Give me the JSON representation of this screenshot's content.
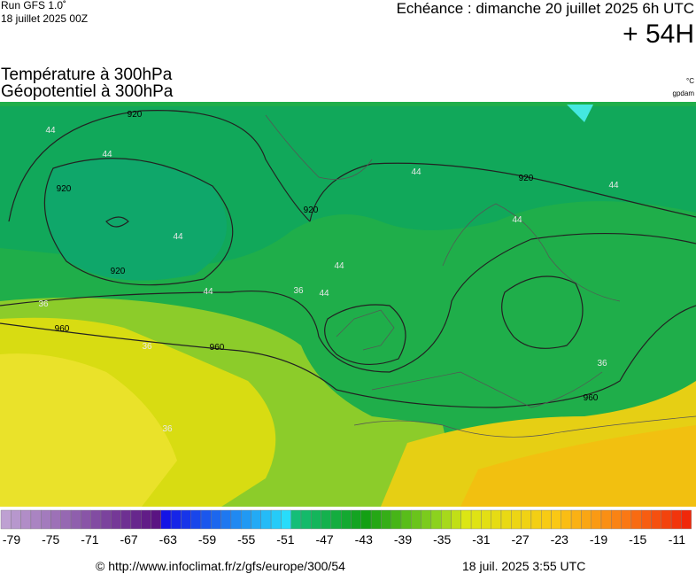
{
  "header": {
    "run": "Run GFS 1.0˚",
    "date": "18 juillet 2025 00Z",
    "echeance": "Echéance : dimanche 20 juillet 2025 6h UTC",
    "lead": "+ 54H"
  },
  "titles": {
    "line1": "Température à 300hPa",
    "line2": "Géopotentiel à 300hPa",
    "unit1": "°C",
    "unit2": "gpdam"
  },
  "map": {
    "labels": [
      "920",
      "920",
      "920",
      "920",
      "920",
      "960",
      "960",
      "960",
      "44",
      "44",
      "44",
      "44",
      "44",
      "44",
      "44",
      "44",
      "44",
      "36",
      "36",
      "36",
      "36",
      "36"
    ]
  },
  "colorbar": {
    "ticks": [
      -79,
      -75,
      -71,
      -67,
      -63,
      -59,
      -55,
      -51,
      -47,
      -43,
      -39,
      -35,
      -31,
      -27,
      -23,
      -19,
      -15,
      -11
    ]
  },
  "footer": {
    "url": "© http://www.infoclimat.fr/z/gfs/europe/300/54",
    "time": "18 juil. 2025  3:55 UTC"
  }
}
